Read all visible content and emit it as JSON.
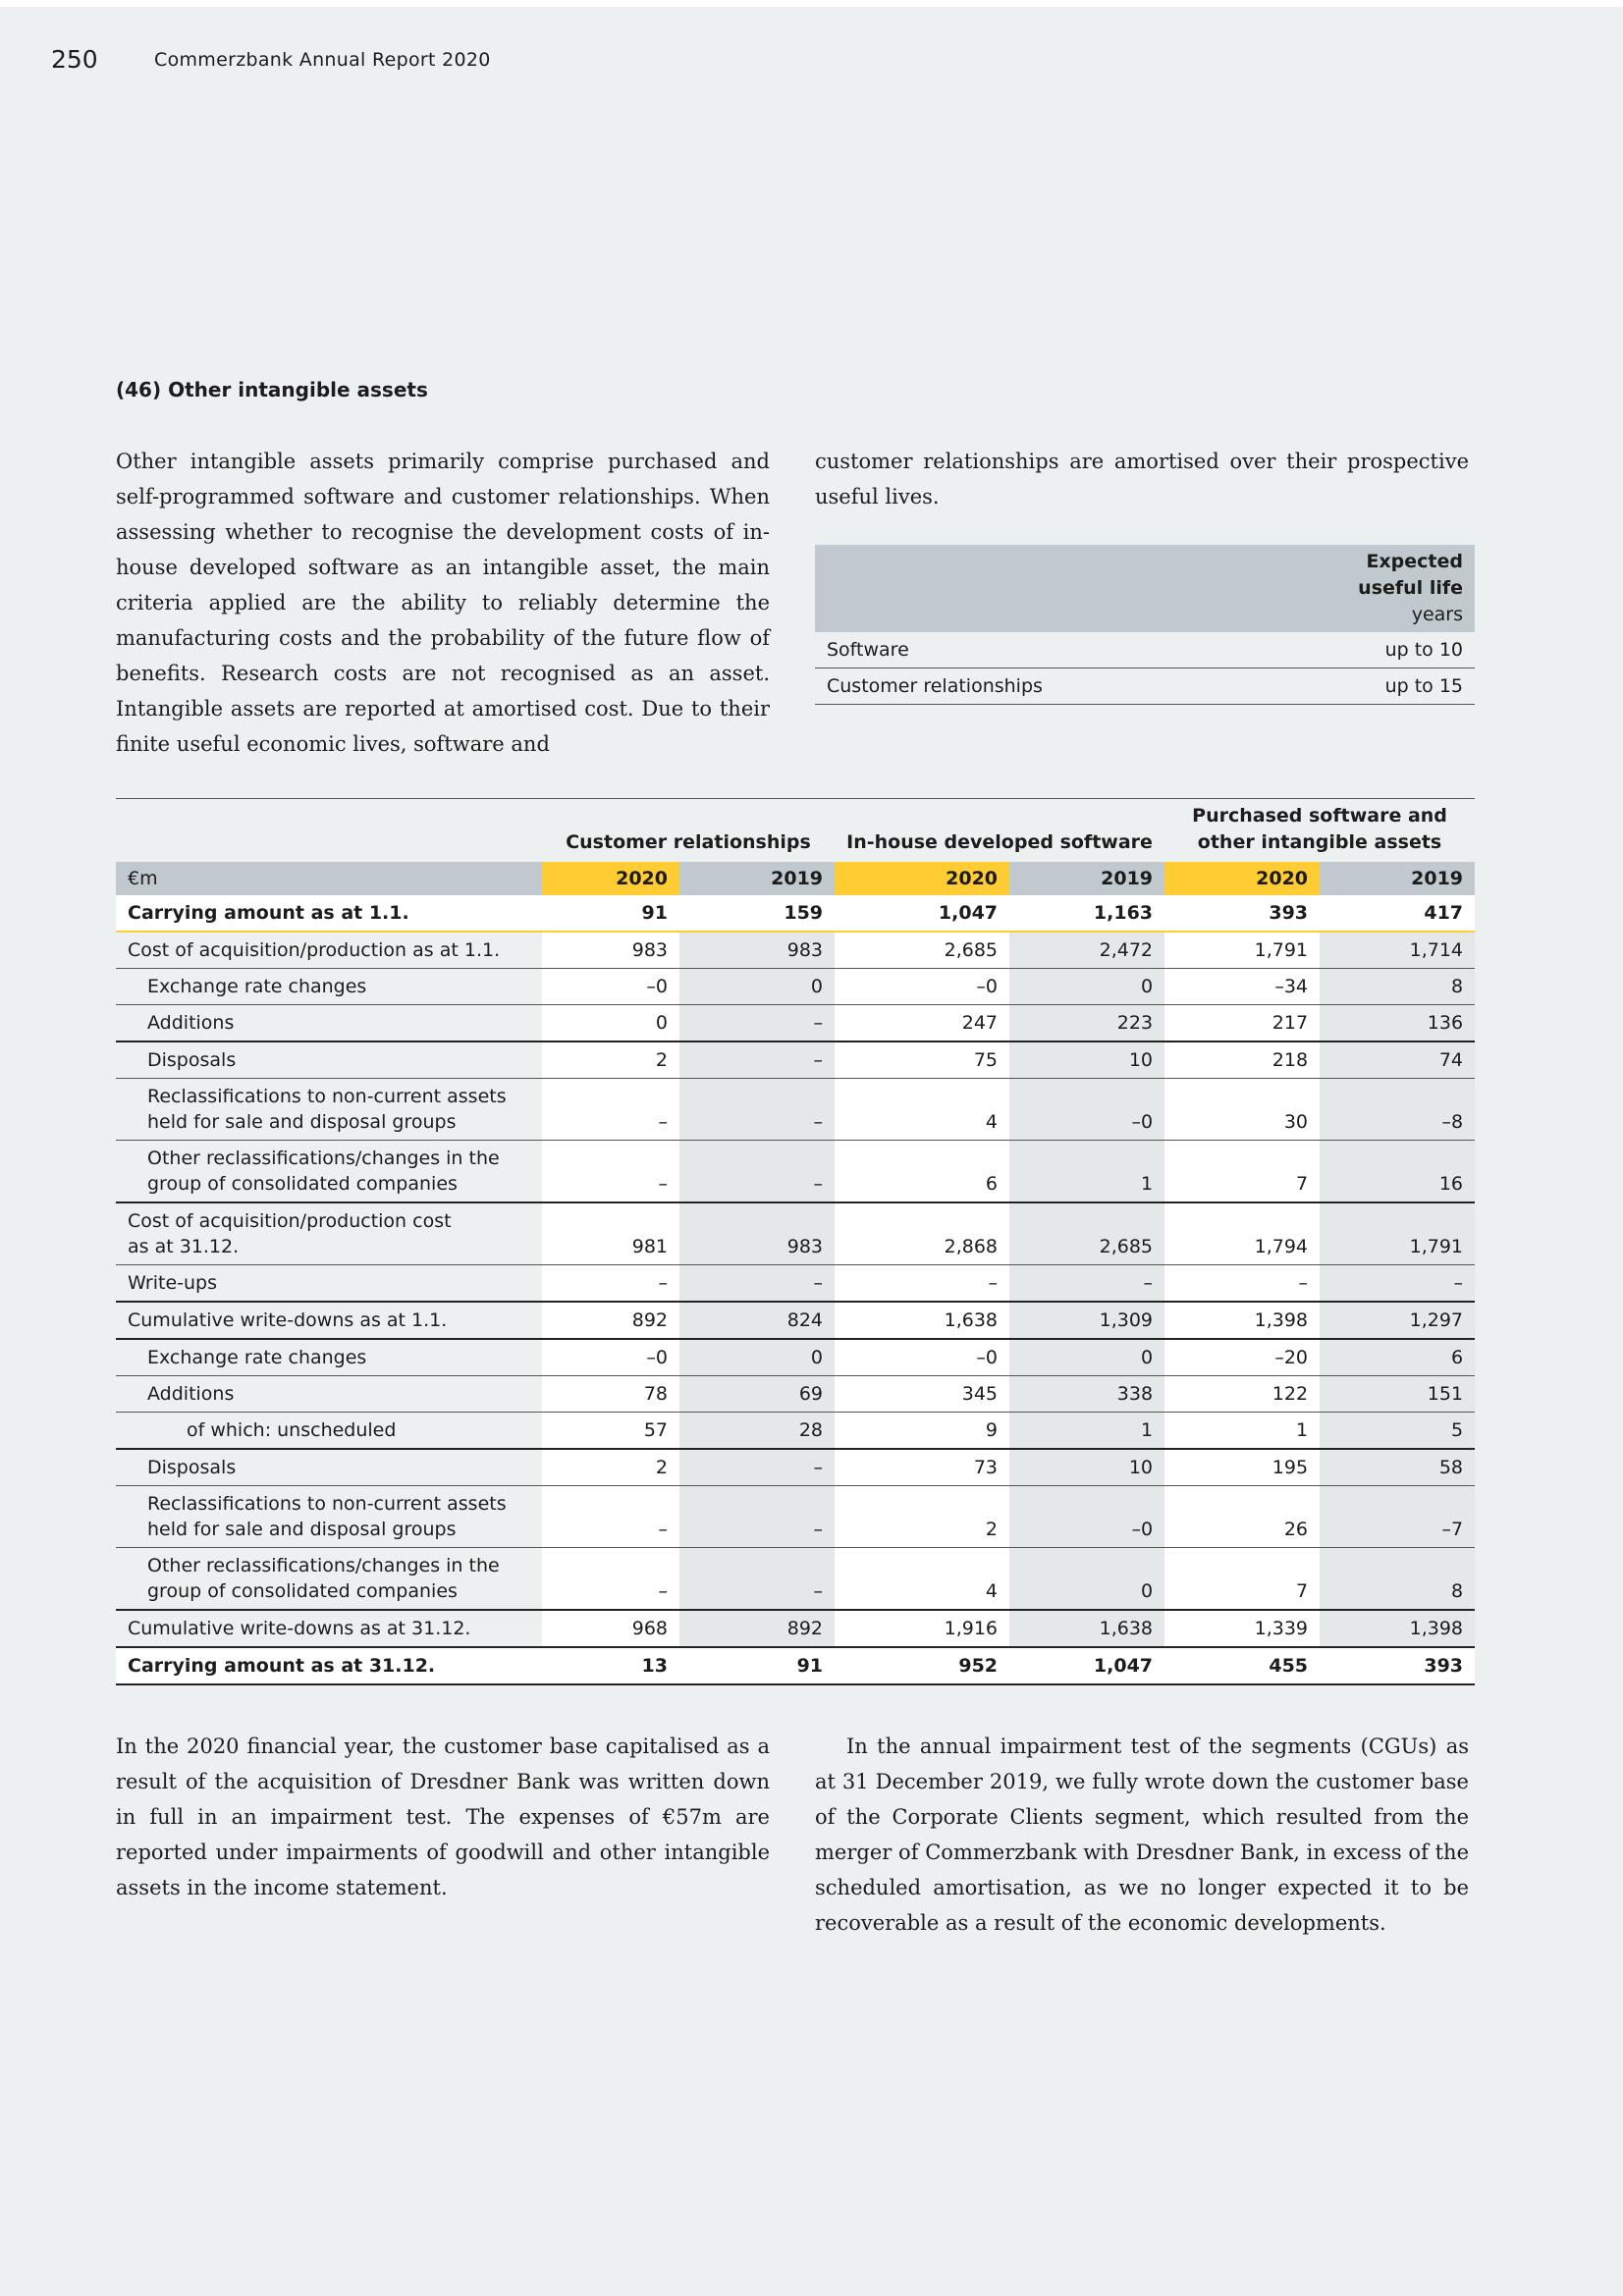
{
  "header": {
    "page_number": "250",
    "report_title": "Commerzbank Annual Report 2020"
  },
  "section": {
    "heading": "(46) Other intangible assets"
  },
  "intro": {
    "left": "Other intangible assets primarily comprise purchased and self-programmed software and customer relationships. When assessing whether to recognise the development costs of in-house developed software as an intangible asset, the main criteria applied are the ability to reliably determine the manufacturing costs and the probability of the future flow of benefits. Research costs are not recognised as an asset. Intangible assets are reported at amortised cost. Due to their finite useful economic lives, software and",
    "right": "customer relationships are amortised over their prospective useful lives."
  },
  "life_table": {
    "header_line1": "Expected",
    "header_line2": "useful life",
    "header_line3": "years",
    "rows": [
      {
        "label": "Software",
        "value": "up to 10"
      },
      {
        "label": "Customer relationships",
        "value": "up to 15"
      }
    ]
  },
  "main_table": {
    "groups": [
      {
        "label": "Customer relationships"
      },
      {
        "label": "In-house developed software"
      },
      {
        "label_line1": "Purchased software and",
        "label_line2": "other intangible assets"
      }
    ],
    "unit_label": "€m",
    "years": [
      "2020",
      "2019",
      "2020",
      "2019",
      "2020",
      "2019"
    ],
    "rows": [
      {
        "label": "Carrying amount as at 1.1.",
        "values": [
          "91",
          "159",
          "1,047",
          "1,163",
          "393",
          "417"
        ]
      },
      {
        "label": "Cost of acquisition/production as at 1.1.",
        "values": [
          "983",
          "983",
          "2,685",
          "2,472",
          "1,791",
          "1,714"
        ]
      },
      {
        "label": "Exchange rate changes",
        "values": [
          "–0",
          "0",
          "–0",
          "0",
          "–34",
          "8"
        ]
      },
      {
        "label": "Additions",
        "values": [
          "0",
          "–",
          "247",
          "223",
          "217",
          "136"
        ]
      },
      {
        "label": "Disposals",
        "values": [
          "2",
          "–",
          "75",
          "10",
          "218",
          "74"
        ]
      },
      {
        "label_line1": "Reclassifications to non-current assets",
        "label_line2": "held for sale and disposal groups",
        "values": [
          "–",
          "–",
          "4",
          "–0",
          "30",
          "–8"
        ]
      },
      {
        "label_line1": "Other reclassifications/changes in the",
        "label_line2": "group of consolidated companies",
        "values": [
          "–",
          "–",
          "6",
          "1",
          "7",
          "16"
        ]
      },
      {
        "label_line1": "Cost of acquisition/production cost",
        "label_line2": "as at 31.12.",
        "values": [
          "981",
          "983",
          "2,868",
          "2,685",
          "1,794",
          "1,791"
        ]
      },
      {
        "label": "Write-ups",
        "values": [
          "–",
          "–",
          "–",
          "–",
          "–",
          "–"
        ]
      },
      {
        "label": "Cumulative write-downs as at 1.1.",
        "values": [
          "892",
          "824",
          "1,638",
          "1,309",
          "1,398",
          "1,297"
        ]
      },
      {
        "label": "Exchange rate changes",
        "values": [
          "–0",
          "0",
          "–0",
          "0",
          "–20",
          "6"
        ]
      },
      {
        "label": "Additions",
        "values": [
          "78",
          "69",
          "345",
          "338",
          "122",
          "151"
        ]
      },
      {
        "label": "of which: unscheduled",
        "values": [
          "57",
          "28",
          "9",
          "1",
          "1",
          "5"
        ]
      },
      {
        "label": "Disposals",
        "values": [
          "2",
          "–",
          "73",
          "10",
          "195",
          "58"
        ]
      },
      {
        "label_line1": "Reclassifications to non-current assets",
        "label_line2": "held for sale and disposal groups",
        "values": [
          "–",
          "–",
          "2",
          "–0",
          "26",
          "–7"
        ]
      },
      {
        "label_line1": "Other reclassifications/changes in the",
        "label_line2": "group of consolidated companies",
        "values": [
          "–",
          "–",
          "4",
          "0",
          "7",
          "8"
        ]
      },
      {
        "label": "Cumulative write-downs as at 31.12.",
        "values": [
          "968",
          "892",
          "1,916",
          "1,638",
          "1,339",
          "1,398"
        ]
      },
      {
        "label": "Carrying amount as at 31.12.",
        "values": [
          "13",
          "91",
          "952",
          "1,047",
          "455",
          "393"
        ]
      }
    ]
  },
  "outro": {
    "left": "In the 2020 financial year, the customer base capitalised as a result of the acquisition of Dresdner Bank was written down in full in an impairment test. The expenses of €57m are reported under impairments of goodwill and other intangible assets in the income statement.",
    "right": "In the annual impairment test of the segments (CGUs) as at 31 December 2019, we fully wrote down the customer base of the Corporate Clients segment, which resulted from the merger of Commerzbank with Dresdner Bank, in excess of the scheduled amortisation, as we no longer expected it to be recoverable as a result of the economic developments."
  },
  "colors": {
    "page_background": "#edf0f0",
    "table_header_grey": "#bfc9ce",
    "highlight_yellow": "#ffcc33"
  }
}
